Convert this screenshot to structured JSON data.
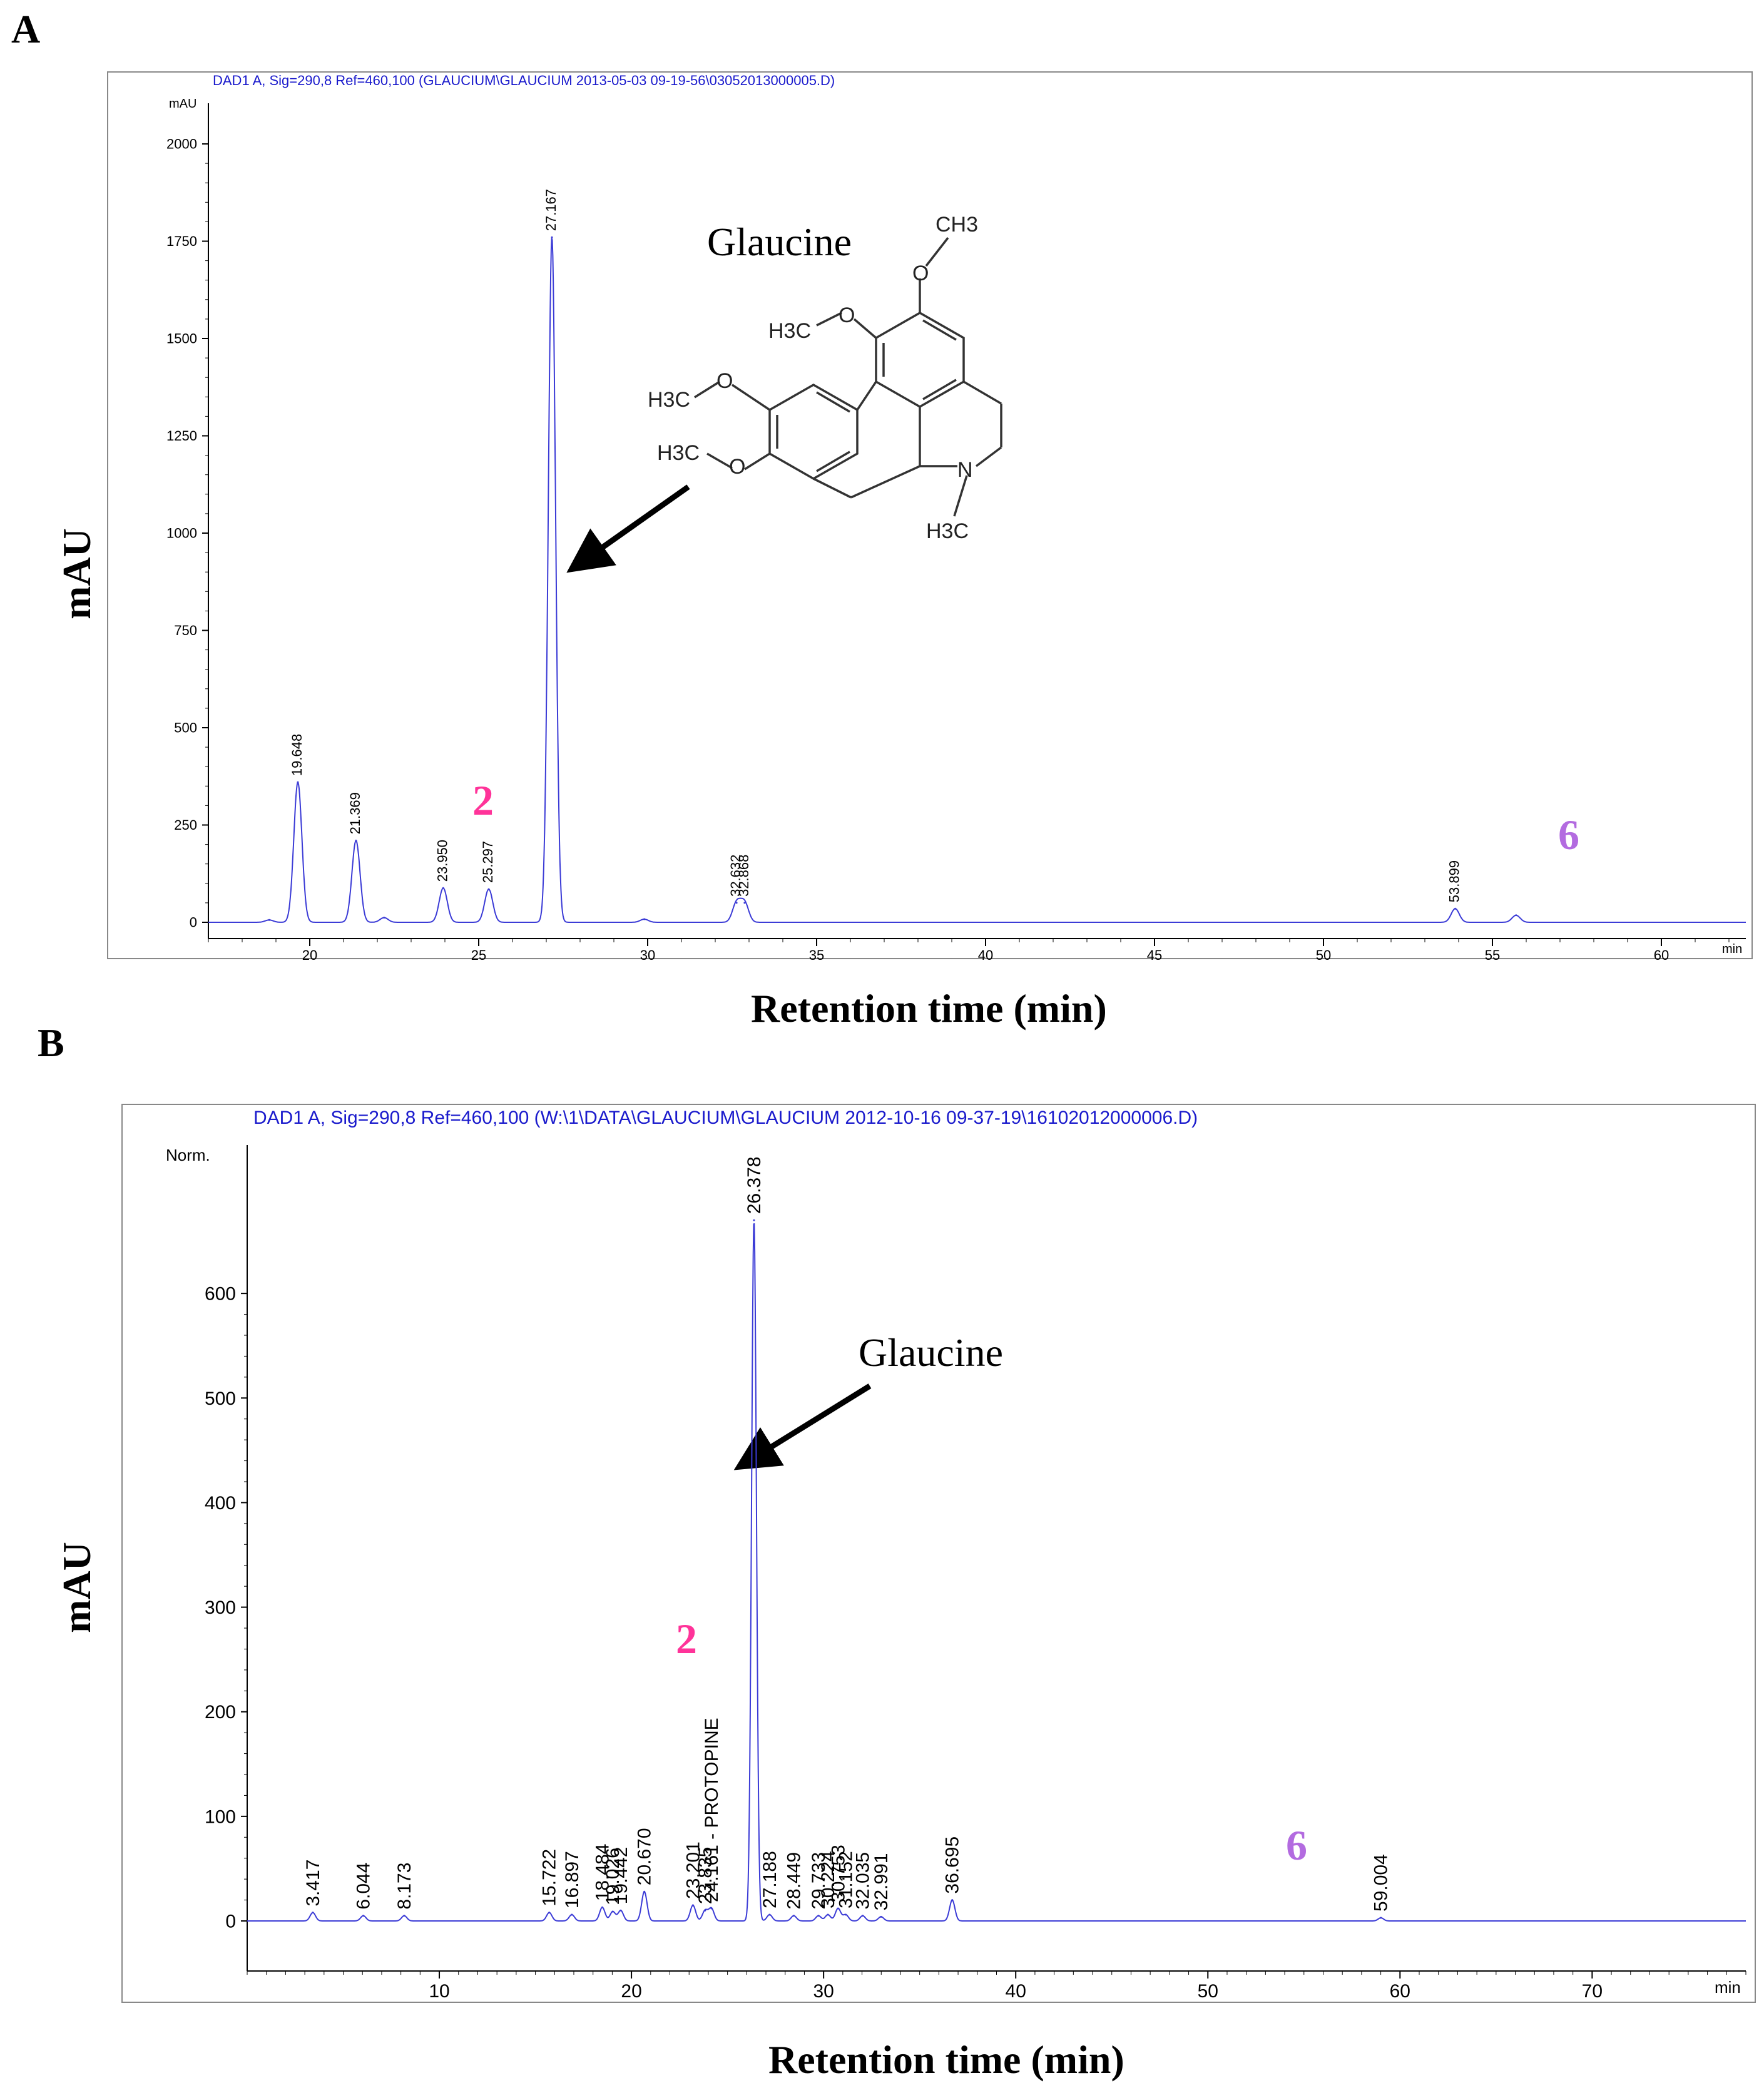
{
  "panels": [
    {
      "letter": "A",
      "header": "DAD1 A, Sig=290,8 Ref=460,100 (GLAUCIUM\\GLAUCIUM 2013-05-03 09-19-56\\03052013000005.D)",
      "unit_label": "mAU",
      "x_unit": "min",
      "xlabel": "Retention time (min)",
      "ylabel": "mAU",
      "compound_name": "Glaucine",
      "marker_2": "2",
      "marker_6": "6"
    },
    {
      "letter": "B",
      "header": "DAD1 A, Sig=290,8 Ref=460,100 (W:\\1\\DATA\\GLAUCIUM\\GLAUCIUM 2012-10-16 09-37-19\\16102012000006.D)",
      "unit_label": "Norm.",
      "x_unit": "min",
      "xlabel": "Retention time (min)",
      "ylabel": "mAU",
      "compound_name": "Glaucine",
      "marker_2": "2",
      "marker_6": "6",
      "peak_annotation": "24.161 - PROTOPINE"
    }
  ],
  "structure_labels": [
    "CH3",
    "O",
    "H3C",
    "O",
    "H3C",
    "O",
    "H3C",
    "O",
    "N",
    "H3C"
  ],
  "colors": {
    "trace": "#3b3bd6",
    "header": "#1a1acc",
    "marker_2": "#ff3399",
    "marker_6": "#b36be0",
    "axis": "#000000"
  },
  "chart_data": [
    {
      "type": "line",
      "xlim": [
        17,
        62.5
      ],
      "ylim": [
        0,
        2100
      ],
      "xticks": [
        20,
        25,
        30,
        35,
        40,
        45,
        50,
        55,
        60
      ],
      "yticks": [
        0,
        250,
        500,
        750,
        1000,
        1250,
        1500,
        1750,
        2000
      ],
      "grid": false,
      "peaks": [
        {
          "x": 19.648,
          "y": 360,
          "label": "19.648"
        },
        {
          "x": 21.369,
          "y": 210,
          "label": "21.369"
        },
        {
          "x": 23.95,
          "y": 88,
          "label": "23.950"
        },
        {
          "x": 25.297,
          "y": 85,
          "label": "25.297"
        },
        {
          "x": 27.167,
          "y": 1760,
          "label": "27.167"
        },
        {
          "x": 32.632,
          "y": 50,
          "label": "32.632"
        },
        {
          "x": 32.868,
          "y": 50,
          "label": "32.868"
        },
        {
          "x": 53.899,
          "y": 35,
          "label": "53.899"
        },
        {
          "x": 55.7,
          "y": 18,
          "label": ""
        },
        {
          "x": 22.2,
          "y": 12,
          "label": ""
        },
        {
          "x": 18.8,
          "y": 6,
          "label": ""
        },
        {
          "x": 29.9,
          "y": 8,
          "label": ""
        }
      ]
    },
    {
      "type": "line",
      "xlim": [
        0,
        78
      ],
      "ylim": [
        -10,
        690
      ],
      "xticks": [
        10,
        20,
        30,
        40,
        50,
        60,
        70
      ],
      "yticks": [
        0,
        100,
        200,
        300,
        400,
        500,
        600
      ],
      "grid": false,
      "peaks": [
        {
          "x": 3.417,
          "y": 8,
          "label": "3.417"
        },
        {
          "x": 6.044,
          "y": 5,
          "label": "6.044"
        },
        {
          "x": 8.173,
          "y": 5,
          "label": "8.173"
        },
        {
          "x": 15.722,
          "y": 8,
          "label": "15.722"
        },
        {
          "x": 16.897,
          "y": 6,
          "label": "16.897"
        },
        {
          "x": 18.484,
          "y": 13,
          "label": "18.484"
        },
        {
          "x": 19.026,
          "y": 9,
          "label": "19.026"
        },
        {
          "x": 19.442,
          "y": 10,
          "label": "19.442"
        },
        {
          "x": 20.67,
          "y": 28,
          "label": "20.670"
        },
        {
          "x": 23.201,
          "y": 15,
          "label": "23.201"
        },
        {
          "x": 23.835,
          "y": 10,
          "label": "23.835"
        },
        {
          "x": 24.161,
          "y": 12,
          "label": "24.161 - PROTOPINE"
        },
        {
          "x": 26.378,
          "y": 670,
          "label": "26.378"
        },
        {
          "x": 27.188,
          "y": 6,
          "label": "27.188"
        },
        {
          "x": 28.449,
          "y": 5,
          "label": "28.449"
        },
        {
          "x": 29.733,
          "y": 5,
          "label": "29.733"
        },
        {
          "x": 30.224,
          "y": 6,
          "label": "30.224"
        },
        {
          "x": 30.753,
          "y": 12,
          "label": "30.753"
        },
        {
          "x": 31.152,
          "y": 6,
          "label": "31.152"
        },
        {
          "x": 32.035,
          "y": 5,
          "label": "32.035"
        },
        {
          "x": 32.991,
          "y": 4,
          "label": "32.991"
        },
        {
          "x": 36.695,
          "y": 20,
          "label": "36.695"
        },
        {
          "x": 59.004,
          "y": 3,
          "label": "59.004"
        }
      ]
    }
  ]
}
